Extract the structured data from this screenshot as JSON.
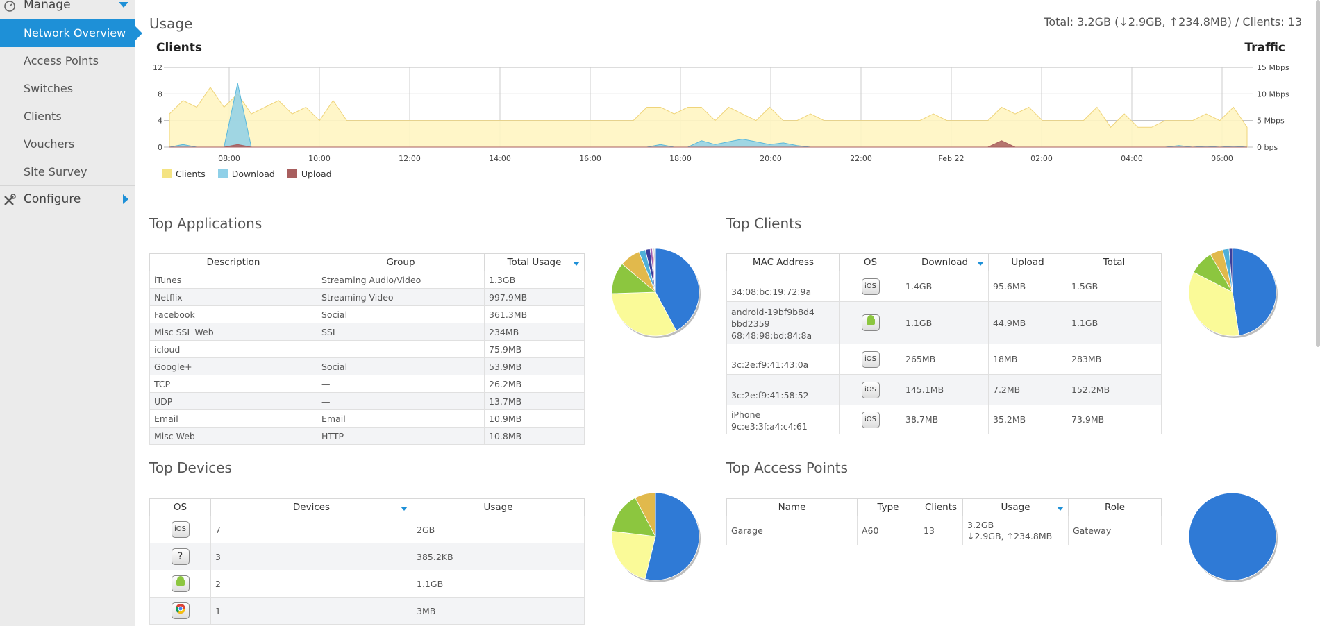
{
  "sidebar": {
    "manage_label": "Manage",
    "items": [
      {
        "label": "Network Overview",
        "active": true
      },
      {
        "label": "Access Points"
      },
      {
        "label": "Switches"
      },
      {
        "label": "Clients"
      },
      {
        "label": "Vouchers"
      },
      {
        "label": "Site Survey"
      }
    ],
    "configure_label": "Configure"
  },
  "usage": {
    "title": "Usage",
    "summary": "Total: 3.2GB (↓2.9GB, ↑234.8MB) / Clients: 13",
    "left_axis_title": "Clients",
    "right_axis_title": "Traffic",
    "legend": [
      "Clients",
      "Download",
      "Upload"
    ]
  },
  "colors": {
    "clients": "#fff5c2",
    "clients_line": "#efd47a",
    "download": "#8fd0e8",
    "upload": "#a85e5e",
    "accent": "#1e90d7",
    "pie_blue": "#2f7ad6",
    "pie_yellow": "#fafa98",
    "pie_green": "#8cc63f",
    "pie_gold": "#e1b94c"
  },
  "chart_data": {
    "type": "area",
    "title": "",
    "x_ticks": [
      "08:00",
      "10:00",
      "12:00",
      "14:00",
      "16:00",
      "18:00",
      "20:00",
      "22:00",
      "Feb 22",
      "02:00",
      "04:00",
      "06:00"
    ],
    "y_left_ticks": [
      "0",
      "4",
      "8",
      "12"
    ],
    "y_left_range": [
      0,
      12
    ],
    "y_right_ticks": [
      "0 bps",
      "5 Mbps",
      "10 Mbps",
      "15 Mbps"
    ],
    "y_right_range": [
      0,
      15
    ],
    "series": [
      {
        "name": "Clients",
        "axis": "left",
        "values": [
          5,
          7,
          6,
          9,
          6,
          8,
          5,
          6,
          7,
          5,
          6,
          4,
          7,
          4,
          4,
          4,
          4,
          4,
          4,
          4,
          4,
          4,
          4,
          4,
          4,
          4,
          4,
          4,
          4,
          4,
          4,
          4,
          4,
          4,
          4,
          6,
          6,
          5,
          6,
          6,
          4,
          6,
          5,
          4,
          6,
          4,
          4,
          5,
          4,
          4,
          4,
          4,
          4,
          4,
          4,
          4,
          5,
          4,
          4,
          4,
          4,
          6,
          5,
          6,
          4,
          4,
          4,
          4,
          6,
          3,
          5,
          3,
          3,
          4,
          4,
          4,
          5,
          4,
          6,
          3
        ]
      },
      {
        "name": "Download",
        "axis": "right",
        "values": [
          0,
          0.5,
          0,
          0,
          0,
          12,
          0,
          0,
          0,
          0,
          0,
          0,
          0,
          0,
          0,
          0,
          0,
          0,
          0,
          0,
          0,
          0,
          0,
          0,
          0,
          0,
          0,
          0,
          0,
          0,
          0,
          0,
          0,
          0,
          0,
          0,
          0.5,
          0,
          0,
          1.2,
          0.5,
          1,
          1.5,
          1,
          0.5,
          0.8,
          0.3,
          0,
          0,
          0,
          0,
          0,
          0,
          0,
          0,
          0,
          0,
          0,
          0,
          0,
          0,
          0,
          0,
          0,
          0,
          0,
          0,
          0,
          0,
          0,
          0,
          0,
          0,
          0,
          0.3,
          0,
          0.2,
          0,
          0.2,
          0
        ]
      },
      {
        "name": "Upload",
        "axis": "right",
        "values": [
          0,
          0,
          0,
          0,
          0,
          0.5,
          0,
          0,
          0,
          0,
          0,
          0,
          0,
          0,
          0,
          0,
          0,
          0,
          0,
          0,
          0,
          0,
          0,
          0,
          0,
          0,
          0,
          0,
          0,
          0,
          0,
          0,
          0,
          0,
          0,
          0,
          0,
          0,
          0,
          0,
          0,
          0,
          0,
          0,
          0,
          0,
          0,
          0,
          0,
          0,
          0,
          0,
          0,
          0,
          0,
          0,
          0,
          0,
          0,
          0,
          0,
          1.2,
          0,
          0,
          0,
          0,
          0,
          0,
          0,
          0,
          0,
          0,
          0,
          0,
          0,
          0,
          0,
          0,
          0,
          0
        ]
      }
    ]
  },
  "top_applications": {
    "title": "Top Applications",
    "columns": [
      "Description",
      "Group",
      "Total Usage"
    ],
    "rows": [
      [
        "iTunes",
        "Streaming Audio/Video",
        "1.3GB"
      ],
      [
        "Netflix",
        "Streaming Video",
        "997.9MB"
      ],
      [
        "Facebook",
        "Social",
        "361.3MB"
      ],
      [
        "Misc SSL Web",
        "SSL",
        "234MB"
      ],
      [
        "icloud",
        "",
        "75.9MB"
      ],
      [
        "Google+",
        "Social",
        "53.9MB"
      ],
      [
        "TCP",
        "—",
        "26.2MB"
      ],
      [
        "UDP",
        "—",
        "13.7MB"
      ],
      [
        "Email",
        "Email",
        "10.9MB"
      ],
      [
        "Misc Web",
        "HTTP",
        "10.8MB"
      ]
    ],
    "pie_values": [
      1300,
      997.9,
      361.3,
      234,
      75.9,
      53.9,
      26.2,
      13.7,
      10.9,
      10.8
    ]
  },
  "top_clients": {
    "title": "Top Clients",
    "columns": [
      "MAC Address",
      "OS",
      "Download",
      "Upload",
      "Total"
    ],
    "rows": [
      {
        "name": "",
        "mac": "34:08:bc:19:72:9a",
        "os": "iOS",
        "download": "1.4GB",
        "upload": "95.6MB",
        "total": "1.5GB"
      },
      {
        "name": "android-19bf9b8d4bbd2359",
        "mac": "68:48:98:bd:84:8a",
        "os": "android",
        "download": "1.1GB",
        "upload": "44.9MB",
        "total": "1.1GB"
      },
      {
        "name": "",
        "mac": "3c:2e:f9:41:43:0a",
        "os": "iOS",
        "download": "265MB",
        "upload": "18MB",
        "total": "283MB"
      },
      {
        "name": "",
        "mac": "3c:2e:f9:41:58:52",
        "os": "iOS",
        "download": "145.1MB",
        "upload": "7.2MB",
        "total": "152.2MB"
      },
      {
        "name": "iPhone",
        "mac": "9c:e3:3f:a4:c4:61",
        "os": "iOS",
        "download": "38.7MB",
        "upload": "35.2MB",
        "total": "73.9MB"
      }
    ],
    "pie_values": [
      1500,
      1100,
      283,
      152.2,
      73.9,
      40
    ]
  },
  "top_devices": {
    "title": "Top Devices",
    "columns": [
      "OS",
      "Devices",
      "Usage"
    ],
    "rows": [
      {
        "os": "iOS",
        "devices": "7",
        "usage": "2GB"
      },
      {
        "os": "unknown",
        "devices": "3",
        "usage": "385.2KB"
      },
      {
        "os": "android",
        "devices": "2",
        "usage": "1.1GB"
      },
      {
        "os": "chrome",
        "devices": "1",
        "usage": "3MB"
      }
    ],
    "pie_values": [
      7,
      3,
      2,
      1
    ]
  },
  "top_access_points": {
    "title": "Top Access Points",
    "columns": [
      "Name",
      "Type",
      "Clients",
      "Usage",
      "Role"
    ],
    "rows": [
      {
        "name": "Garage",
        "type": "A60",
        "clients": "13",
        "usage": "3.2GB",
        "usage_detail": "↓2.9GB, ↑234.8MB",
        "role": "Gateway"
      }
    ],
    "pie_values": [
      1
    ]
  }
}
